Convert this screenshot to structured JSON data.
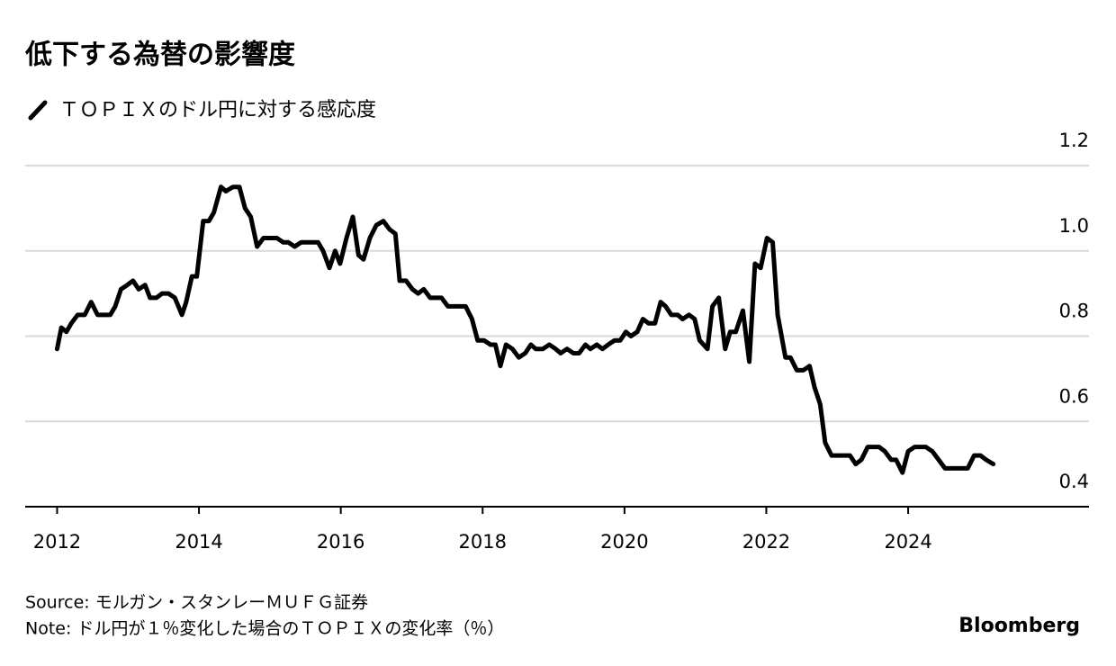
{
  "chart_data": {
    "type": "line",
    "title": "低下する為替の影響度",
    "source": "Source: モルガン・スタンレーＭＵＦＧ証券",
    "note": "Note: ドル円が１％変化した場合のＴＯＰＩＸの変化率（％）",
    "logo": "Bloomberg",
    "x": [
      2012.0,
      2012.06,
      2012.13,
      2012.2,
      2012.29,
      2012.39,
      2012.48,
      2012.57,
      2012.66,
      2012.75,
      2012.82,
      2012.9,
      2012.99,
      2013.07,
      2013.15,
      2013.24,
      2013.31,
      2013.4,
      2013.48,
      2013.57,
      2013.66,
      2013.76,
      2013.82,
      2013.9,
      2013.97,
      2014.06,
      2014.14,
      2014.21,
      2014.31,
      2014.38,
      2014.48,
      2014.57,
      2014.65,
      2014.73,
      2014.82,
      2014.91,
      2015.0,
      2015.1,
      2015.19,
      2015.26,
      2015.35,
      2015.44,
      2015.51,
      2015.6,
      2015.68,
      2015.75,
      2015.84,
      2015.92,
      2015.99,
      2016.08,
      2016.17,
      2016.25,
      2016.32,
      2016.41,
      2016.5,
      2016.6,
      2016.69,
      2016.77,
      2016.83,
      2016.92,
      2017.01,
      2017.09,
      2017.17,
      2017.26,
      2017.35,
      2017.42,
      2017.51,
      2017.6,
      2017.69,
      2017.76,
      2017.85,
      2017.93,
      2018.02,
      2018.11,
      2018.18,
      2018.25,
      2018.33,
      2018.42,
      2018.51,
      2018.6,
      2018.68,
      2018.75,
      2018.85,
      2018.94,
      2019.03,
      2019.1,
      2019.19,
      2019.28,
      2019.36,
      2019.45,
      2019.52,
      2019.61,
      2019.69,
      2019.77,
      2019.86,
      2019.94,
      2020.02,
      2020.09,
      2020.18,
      2020.26,
      2020.34,
      2020.43,
      2020.51,
      2020.58,
      2020.66,
      2020.75,
      2020.82,
      2020.91,
      2020.99,
      2021.06,
      2021.17,
      2021.24,
      2021.33,
      2021.42,
      2021.49,
      2021.57,
      2021.67,
      2021.76,
      2021.84,
      2021.92,
      2022.01,
      2022.09,
      2022.16,
      2022.27,
      2022.34,
      2022.43,
      2022.52,
      2022.61,
      2022.68,
      2022.76,
      2022.83,
      2022.92,
      2023.01,
      2023.09,
      2023.18,
      2023.26,
      2023.34,
      2023.43,
      2023.5,
      2023.59,
      2023.67,
      2023.76,
      2023.83,
      2023.92,
      2024.0,
      2024.09,
      2024.16,
      2024.25,
      2024.34,
      2024.43,
      2024.52,
      2024.59,
      2024.68,
      2024.77,
      2024.84,
      2024.93,
      2025.02,
      2025.1,
      2025.2
    ],
    "series": [
      {
        "name": "ＴＯＰＩＸのドル円に対する感応度",
        "color": "#000000",
        "values": [
          0.77,
          0.82,
          0.81,
          0.83,
          0.85,
          0.85,
          0.88,
          0.85,
          0.85,
          0.85,
          0.87,
          0.91,
          0.92,
          0.93,
          0.91,
          0.92,
          0.89,
          0.89,
          0.9,
          0.9,
          0.89,
          0.85,
          0.88,
          0.94,
          0.94,
          1.07,
          1.07,
          1.09,
          1.15,
          1.14,
          1.15,
          1.15,
          1.1,
          1.08,
          1.01,
          1.03,
          1.03,
          1.03,
          1.02,
          1.02,
          1.01,
          1.02,
          1.02,
          1.02,
          1.02,
          1.0,
          0.96,
          1.0,
          0.97,
          1.03,
          1.08,
          0.99,
          0.98,
          1.03,
          1.06,
          1.07,
          1.05,
          1.04,
          0.93,
          0.93,
          0.91,
          0.9,
          0.91,
          0.89,
          0.89,
          0.89,
          0.87,
          0.87,
          0.87,
          0.87,
          0.84,
          0.79,
          0.79,
          0.78,
          0.78,
          0.73,
          0.78,
          0.77,
          0.75,
          0.76,
          0.78,
          0.77,
          0.77,
          0.78,
          0.77,
          0.76,
          0.77,
          0.76,
          0.76,
          0.78,
          0.77,
          0.78,
          0.77,
          0.78,
          0.79,
          0.79,
          0.81,
          0.8,
          0.81,
          0.84,
          0.83,
          0.83,
          0.88,
          0.87,
          0.85,
          0.85,
          0.84,
          0.85,
          0.84,
          0.79,
          0.77,
          0.87,
          0.89,
          0.77,
          0.81,
          0.81,
          0.86,
          0.74,
          0.97,
          0.96,
          1.03,
          1.02,
          0.85,
          0.75,
          0.75,
          0.72,
          0.72,
          0.73,
          0.68,
          0.64,
          0.55,
          0.52,
          0.52,
          0.52,
          0.52,
          0.5,
          0.51,
          0.54,
          0.54,
          0.54,
          0.53,
          0.51,
          0.51,
          0.48,
          0.53,
          0.54,
          0.54,
          0.54,
          0.53,
          0.51,
          0.49,
          0.49,
          0.49,
          0.49,
          0.49,
          0.52,
          0.52,
          0.51,
          0.5
        ]
      }
    ],
    "xlim": [
      2011.55,
      2026.55
    ],
    "xticks": [
      2012,
      2014,
      2016,
      2018,
      2020,
      2022,
      2024
    ],
    "ylim": [
      0.4,
      1.2
    ],
    "yticks": [
      0.4,
      0.6,
      0.8,
      {
        "value": 1,
        "label": "1.0"
      },
      1.2
    ],
    "grid": true
  }
}
